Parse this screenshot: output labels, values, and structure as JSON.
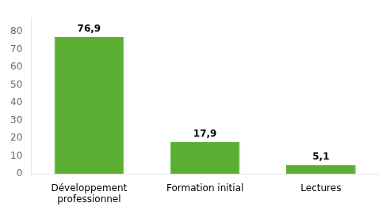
{
  "chart_data": {
    "type": "bar",
    "categories": [
      "Développement\nprofessionnel",
      "Formation initial",
      "Lectures"
    ],
    "values": [
      76.9,
      17.9,
      5.1
    ],
    "value_labels": [
      "76,9",
      "17,9",
      "5,1"
    ],
    "data_labels": true,
    "color": "#5aaf32",
    "ylim": [
      0,
      88
    ],
    "yticks": [
      0,
      10,
      20,
      30,
      40,
      50,
      60,
      70,
      80
    ],
    "grid": false
  }
}
